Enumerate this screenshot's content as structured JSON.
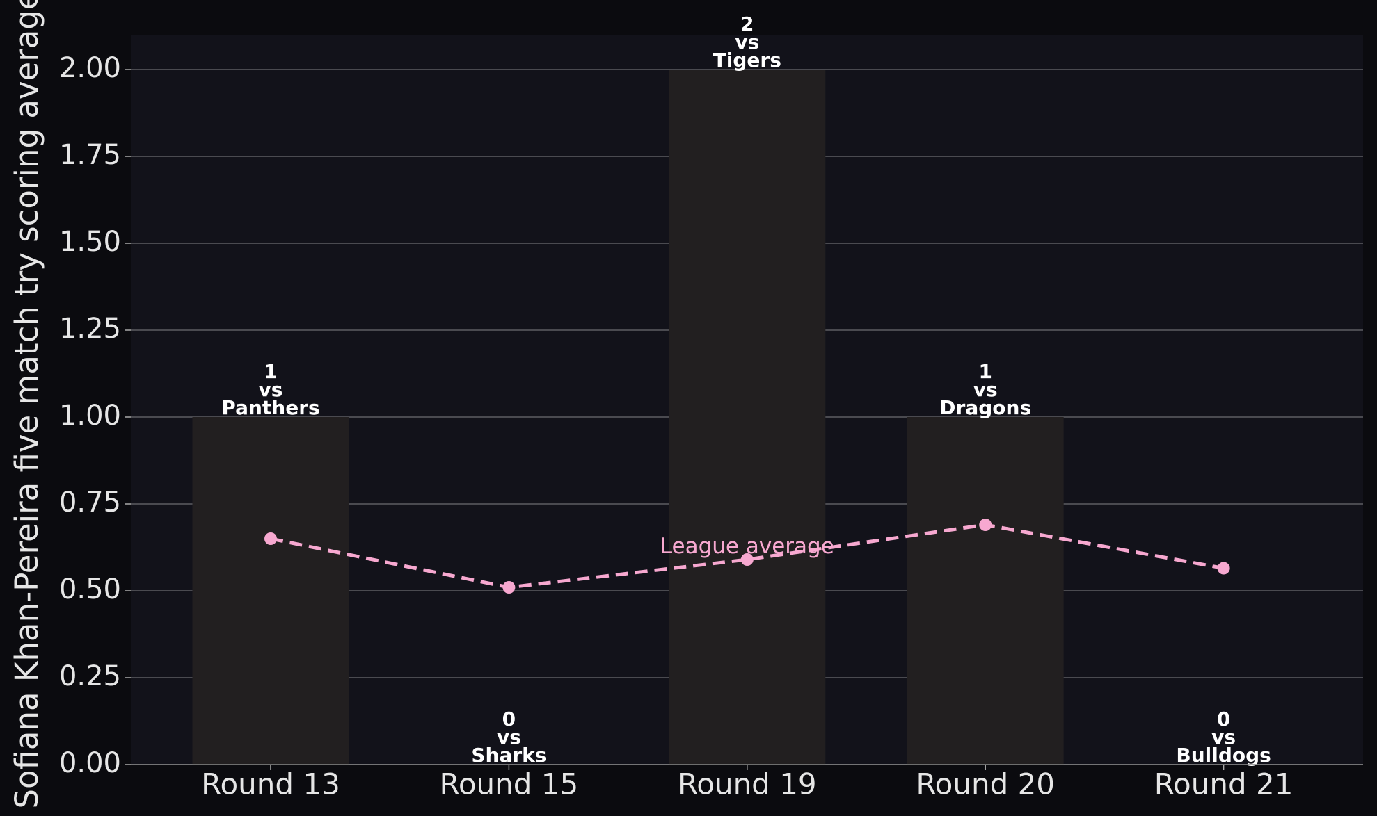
{
  "chart_data": {
    "type": "bar",
    "y_label": "Sofiana Khan-Pereira five match try scoring average",
    "categories": [
      "Round 13",
      "Round 15",
      "Round 19",
      "Round 20",
      "Round 21"
    ],
    "values": [
      1,
      0,
      2,
      1,
      0
    ],
    "color": "#221f20",
    "label_connector": "vs",
    "opponents": [
      "Panthers",
      "Sharks",
      "Tigers",
      "Dragons",
      "Bulldogs"
    ],
    "series": [
      {
        "name": "League average",
        "color": "#f7a8d0",
        "values": [
          0.65,
          0.51,
          0.59,
          0.69,
          0.565
        ]
      }
    ],
    "ylim": [
      0,
      2.1
    ],
    "yticks": [
      {
        "value": 0,
        "label": "0.00"
      },
      {
        "value": 0.25,
        "label": "0.25"
      },
      {
        "value": 0.5,
        "label": "0.50"
      },
      {
        "value": 0.75,
        "label": "0.75"
      },
      {
        "value": 1,
        "label": "1.00"
      },
      {
        "value": 1.25,
        "label": "1.25"
      },
      {
        "value": 1.5,
        "label": "1.50"
      },
      {
        "value": 1.75,
        "label": "1.75"
      },
      {
        "value": 2,
        "label": "2.00"
      }
    ],
    "grid": true
  }
}
